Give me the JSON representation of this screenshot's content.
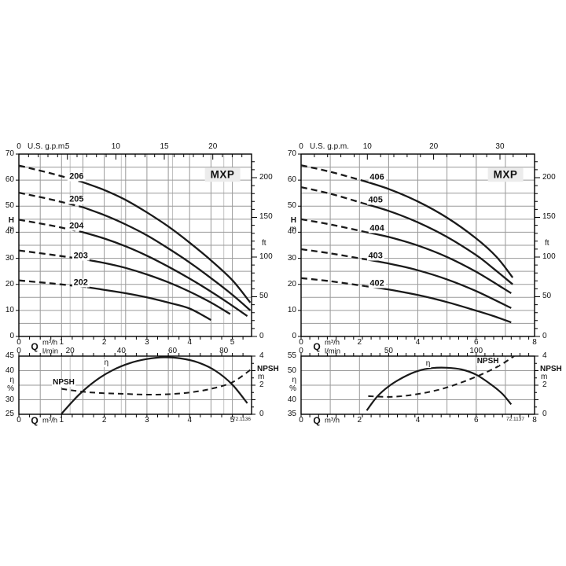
{
  "page": {
    "background": "#ffffff"
  },
  "axis_labels": {
    "head": "H",
    "meter": "m",
    "feet": "ft",
    "flow": "Q",
    "m3h": "m³/h",
    "lmin": "l/min",
    "gpm": "U.S. g.p.m.",
    "eta": "η",
    "percent": "%",
    "npsh": "NPSH",
    "zero": "0"
  },
  "colors": {
    "curve": "#1a1a1a",
    "grid": "#9a9a9a",
    "grid_light": "#c2c2c2",
    "border": "#000000",
    "title_bg": "#ececec"
  },
  "chart_data": [
    {
      "type": "line",
      "title": "MXP",
      "fig_number": "72.1136",
      "fig_inset": 1,
      "main": {
        "xlim": [
          0,
          5.45
        ],
        "ylim": [
          0,
          70
        ],
        "grid_x_step": 0.5,
        "grid_y_step": 5,
        "xlabel": "Q",
        "x_units": [
          "m³/h",
          "l/min"
        ],
        "ylabel": "H",
        "y_unit": "m",
        "y_right_unit": "ft",
        "top_axis": {
          "label": "U.S. g.p.m.",
          "zero": "0",
          "ticks": [
            5,
            10,
            15,
            20
          ],
          "minor_step": 1,
          "major_step": 5
        },
        "left_ticks": [
          70,
          60,
          50,
          40,
          30,
          20,
          10,
          0
        ],
        "right_ticks_ft": [
          200,
          150,
          100,
          50,
          0
        ],
        "m3h_ticks": [
          1,
          2,
          3,
          4,
          5
        ],
        "lmin_ticks": [
          20,
          40,
          60,
          80
        ],
        "bottom_minor_step_m3h": 0.25,
        "series": [
          {
            "name": "206",
            "label_at": [
              1.35,
              61.3
            ],
            "dashed": [
              [
                0,
                65.6
              ],
              [
                0.75,
                62.6
              ],
              [
                1.5,
                59.2
              ]
            ],
            "solid": [
              [
                1.5,
                59.2
              ],
              [
                2,
                56.2
              ],
              [
                2.5,
                52.4
              ],
              [
                3,
                47.6
              ],
              [
                3.5,
                42.2
              ],
              [
                4,
                36
              ],
              [
                4.5,
                29.2
              ],
              [
                5,
                21.6
              ],
              [
                5.42,
                13
              ]
            ]
          },
          {
            "name": "205",
            "label_at": [
              1.35,
              52.6
            ],
            "dashed": [
              [
                0,
                55.2
              ],
              [
                0.75,
                52.6
              ],
              [
                1.5,
                49.6
              ]
            ],
            "solid": [
              [
                1.5,
                49.6
              ],
              [
                2,
                46.6
              ],
              [
                2.5,
                43
              ],
              [
                3,
                38.8
              ],
              [
                3.5,
                33.8
              ],
              [
                4,
                28.4
              ],
              [
                4.5,
                22.4
              ],
              [
                5,
                16
              ],
              [
                5.42,
                10
              ]
            ]
          },
          {
            "name": "204",
            "label_at": [
              1.35,
              42.2
            ],
            "dashed": [
              [
                0,
                44.8
              ],
              [
                0.75,
                42.6
              ],
              [
                1.5,
                40
              ]
            ],
            "solid": [
              [
                1.5,
                40
              ],
              [
                2,
                37.6
              ],
              [
                2.5,
                34.6
              ],
              [
                3,
                31
              ],
              [
                3.5,
                26.8
              ],
              [
                4,
                22.2
              ],
              [
                4.5,
                17.2
              ],
              [
                5,
                11.8
              ],
              [
                5.35,
                7.8
              ]
            ]
          },
          {
            "name": "203",
            "label_at": [
              1.45,
              30.9
            ],
            "dashed": [
              [
                0,
                33
              ],
              [
                0.8,
                31.3
              ],
              [
                1.6,
                29.4
              ]
            ],
            "solid": [
              [
                1.6,
                29.4
              ],
              [
                2,
                28.2
              ],
              [
                2.5,
                26.3
              ],
              [
                3,
                23.8
              ],
              [
                3.5,
                20.8
              ],
              [
                4,
                17.2
              ],
              [
                4.5,
                13
              ],
              [
                4.95,
                8.6
              ]
            ]
          },
          {
            "name": "202",
            "label_at": [
              1.45,
              20.5
            ],
            "dashed": [
              [
                0,
                21.5
              ],
              [
                0.8,
                20.3
              ],
              [
                1.6,
                18.9
              ]
            ],
            "solid": [
              [
                1.6,
                18.9
              ],
              [
                2,
                17.9
              ],
              [
                2.5,
                16.6
              ],
              [
                3,
                15
              ],
              [
                3.5,
                13
              ],
              [
                4,
                10.7
              ],
              [
                4.5,
                6.3
              ]
            ]
          }
        ]
      },
      "lower": {
        "eta_lim": [
          25,
          45
        ],
        "npsh_lim": [
          0,
          4
        ],
        "eta_ticks": [
          45,
          40,
          30,
          25
        ],
        "npsh_ticks": [
          4,
          2,
          0
        ],
        "x_ticks": [
          1,
          2,
          3,
          4,
          5
        ],
        "eta_label_at": [
          2.05,
          42.5
        ],
        "npsh_label_at": [
          1.05,
          2.15
        ],
        "eta_curve": [
          [
            1,
            25.2
          ],
          [
            1.4,
            31.6
          ],
          [
            1.8,
            36.6
          ],
          [
            2.2,
            40.2
          ],
          [
            2.6,
            42.6
          ],
          [
            3,
            44
          ],
          [
            3.4,
            44.6
          ],
          [
            3.8,
            44.2
          ],
          [
            4.2,
            42.8
          ],
          [
            4.6,
            40
          ],
          [
            5,
            35.2
          ],
          [
            5.35,
            28.8
          ]
        ],
        "npsh_curve": [
          [
            1,
            1.75
          ],
          [
            1.5,
            1.55
          ],
          [
            2,
            1.45
          ],
          [
            2.5,
            1.4
          ],
          [
            3,
            1.35
          ],
          [
            3.5,
            1.38
          ],
          [
            4,
            1.5
          ],
          [
            4.5,
            1.75
          ],
          [
            5,
            2.2
          ],
          [
            5.42,
            3.05
          ]
        ]
      }
    },
    {
      "type": "line",
      "title": "MXP",
      "fig_number": "72.1137",
      "fig_inset": 13,
      "main": {
        "xlim": [
          0,
          8
        ],
        "ylim": [
          0,
          70
        ],
        "grid_x_step": 1,
        "grid_y_step": 5,
        "xlabel": "Q",
        "x_units": [
          "m³/h",
          "l/min"
        ],
        "ylabel": "H",
        "y_unit": "m",
        "y_right_unit": "ft",
        "top_axis": {
          "label": "U.S. g.p.m.",
          "zero": "0",
          "ticks": [
            10,
            20,
            30
          ],
          "minor_step": 2,
          "major_step": 10
        },
        "left_ticks": [
          70,
          60,
          50,
          40,
          30,
          20,
          10,
          0
        ],
        "right_ticks_ft": [
          200,
          150,
          100,
          50,
          0
        ],
        "m3h_ticks": [
          2,
          4,
          6,
          8
        ],
        "lmin_ticks": [
          50,
          100
        ],
        "bottom_minor_step_m3h": 0.3,
        "series": [
          {
            "name": "406",
            "label_at": [
              2.6,
              60.9
            ],
            "dashed": [
              [
                0,
                65.7
              ],
              [
                1,
                63.2
              ],
              [
                2.05,
                60
              ]
            ],
            "solid": [
              [
                2.05,
                60
              ],
              [
                3,
                56.6
              ],
              [
                4,
                51.8
              ],
              [
                5,
                45.6
              ],
              [
                6,
                37.6
              ],
              [
                6.7,
                30.5
              ],
              [
                7.25,
                22.6
              ]
            ]
          },
          {
            "name": "405",
            "label_at": [
              2.55,
              52.2
            ],
            "dashed": [
              [
                0,
                57.3
              ],
              [
                1,
                54.8
              ],
              [
                2.1,
                51.2
              ]
            ],
            "solid": [
              [
                2.1,
                51.2
              ],
              [
                3,
                48.2
              ],
              [
                4,
                43.8
              ],
              [
                5,
                38.2
              ],
              [
                6,
                31.2
              ],
              [
                6.6,
                26
              ],
              [
                7.25,
                20
              ]
            ]
          },
          {
            "name": "404",
            "label_at": [
              2.6,
              41.2
            ],
            "dashed": [
              [
                0,
                45
              ],
              [
                1,
                43
              ],
              [
                2.2,
                40.1
              ]
            ],
            "solid": [
              [
                2.2,
                40.1
              ],
              [
                3,
                38.2
              ],
              [
                4,
                34.9
              ],
              [
                5,
                30.5
              ],
              [
                6,
                24.8
              ],
              [
                7.2,
                16.6
              ]
            ]
          },
          {
            "name": "403",
            "label_at": [
              2.55,
              30.7
            ],
            "dashed": [
              [
                0,
                33.5
              ],
              [
                1,
                31.9
              ],
              [
                2.2,
                29.6
              ]
            ],
            "solid": [
              [
                2.2,
                29.6
              ],
              [
                3,
                28
              ],
              [
                4,
                25.4
              ],
              [
                5,
                21.9
              ],
              [
                6,
                17.4
              ],
              [
                7.2,
                10.9
              ]
            ]
          },
          {
            "name": "402",
            "label_at": [
              2.6,
              20.2
            ],
            "dashed": [
              [
                0,
                22.4
              ],
              [
                1,
                21.2
              ],
              [
                2.2,
                19.3
              ]
            ],
            "solid": [
              [
                2.2,
                19.3
              ],
              [
                3,
                18
              ],
              [
                4,
                15.9
              ],
              [
                5,
                13.2
              ],
              [
                6,
                9.9
              ],
              [
                6.6,
                7.8
              ],
              [
                7.2,
                5.4
              ]
            ]
          }
        ]
      },
      "lower": {
        "eta_lim": [
          35,
          55
        ],
        "npsh_lim": [
          0,
          4
        ],
        "eta_ticks": [
          55,
          50,
          40,
          35
        ],
        "npsh_ticks": [
          4,
          2,
          0
        ],
        "x_ticks": [
          2,
          4,
          6,
          8
        ],
        "eta_label_at": [
          4.35,
          52.4
        ],
        "npsh_label_at": [
          6.4,
          3.62
        ],
        "eta_curve": [
          [
            2.25,
            36.3
          ],
          [
            2.6,
            41
          ],
          [
            3,
            44.6
          ],
          [
            3.5,
            47.7
          ],
          [
            4,
            49.9
          ],
          [
            4.5,
            50.9
          ],
          [
            5,
            51
          ],
          [
            5.5,
            50.4
          ],
          [
            6,
            48.6
          ],
          [
            6.5,
            45.3
          ],
          [
            6.9,
            42
          ],
          [
            7.2,
            38.4
          ]
        ],
        "npsh_curve": [
          [
            2.3,
            1.25
          ],
          [
            2.8,
            1.2
          ],
          [
            3.3,
            1.22
          ],
          [
            3.8,
            1.33
          ],
          [
            4.3,
            1.5
          ],
          [
            4.8,
            1.73
          ],
          [
            5.3,
            2.05
          ],
          [
            5.8,
            2.42
          ],
          [
            6.3,
            2.85
          ],
          [
            6.8,
            3.35
          ],
          [
            7.3,
            4
          ]
        ]
      }
    }
  ]
}
